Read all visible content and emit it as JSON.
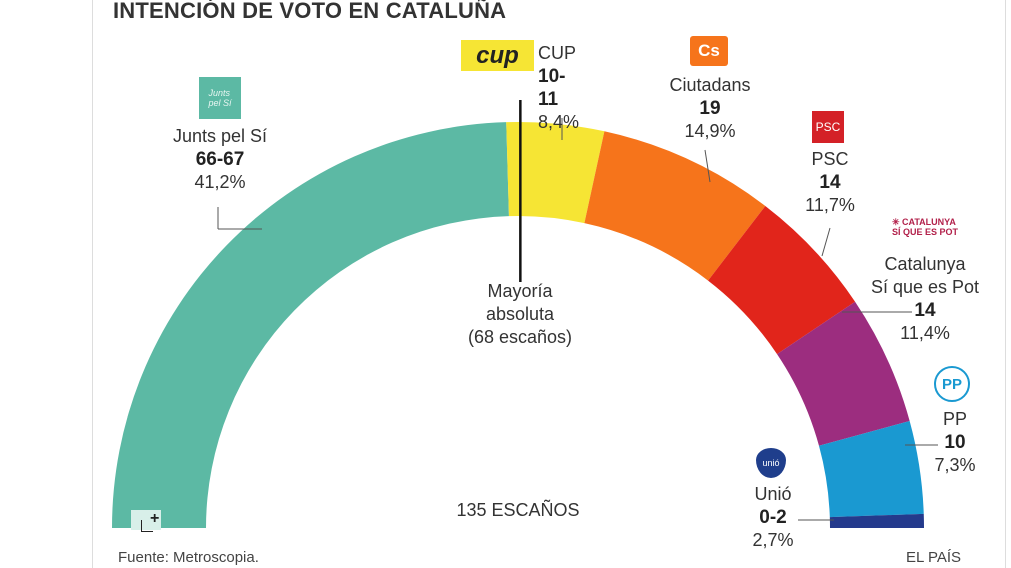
{
  "title": "INTENCIÓN DE VOTO EN CATALUÑA",
  "chart_data": {
    "type": "hemicycle",
    "title": "INTENCIÓN DE VOTO EN CATALUÑA",
    "total_seats": 135,
    "total_label": "135 ESCAÑOS",
    "majority": {
      "seats": 68,
      "label1": "Mayoría",
      "label2": "absoluta",
      "label3": "(68 escaños)"
    },
    "parties": [
      {
        "name": "Junts pel Sí",
        "seats_label": "66-67",
        "seats": 66.5,
        "pct": "41,2%",
        "color": "#5cb9a4"
      },
      {
        "name": "CUP",
        "seats_label": "10-11",
        "seats": 10.5,
        "pct": "8,4%",
        "color": "#f6e534"
      },
      {
        "name": "Ciutadans",
        "seats_label": "19",
        "seats": 19,
        "pct": "14,9%",
        "color": "#f6741b"
      },
      {
        "name": "PSC",
        "seats_label": "14",
        "seats": 14,
        "pct": "11,7%",
        "color": "#e1251b"
      },
      {
        "name": "Catalunya Sí que es Pot",
        "name1": "Catalunya",
        "name2": "Sí que es Pot",
        "seats_label": "14",
        "seats": 14,
        "pct": "11,4%",
        "color": "#9c2d7f"
      },
      {
        "name": "PP",
        "seats_label": "10",
        "seats": 10,
        "pct": "7,3%",
        "color": "#1a99d1"
      },
      {
        "name": "Unió",
        "seats_label": "0-2",
        "seats": 1.5,
        "pct": "2,7%",
        "color": "#243a8c"
      }
    ],
    "source": "Fuente: Metroscopia.",
    "credit": "EL PAÍS"
  },
  "logos": {
    "cup": "cup",
    "cs": "Cs",
    "psc": "PSC",
    "csqp": "CATALUNYA SÍ QUE ES POT",
    "pp": "PP",
    "unio": "unió.cat",
    "junts": "Junts pel Sí"
  }
}
